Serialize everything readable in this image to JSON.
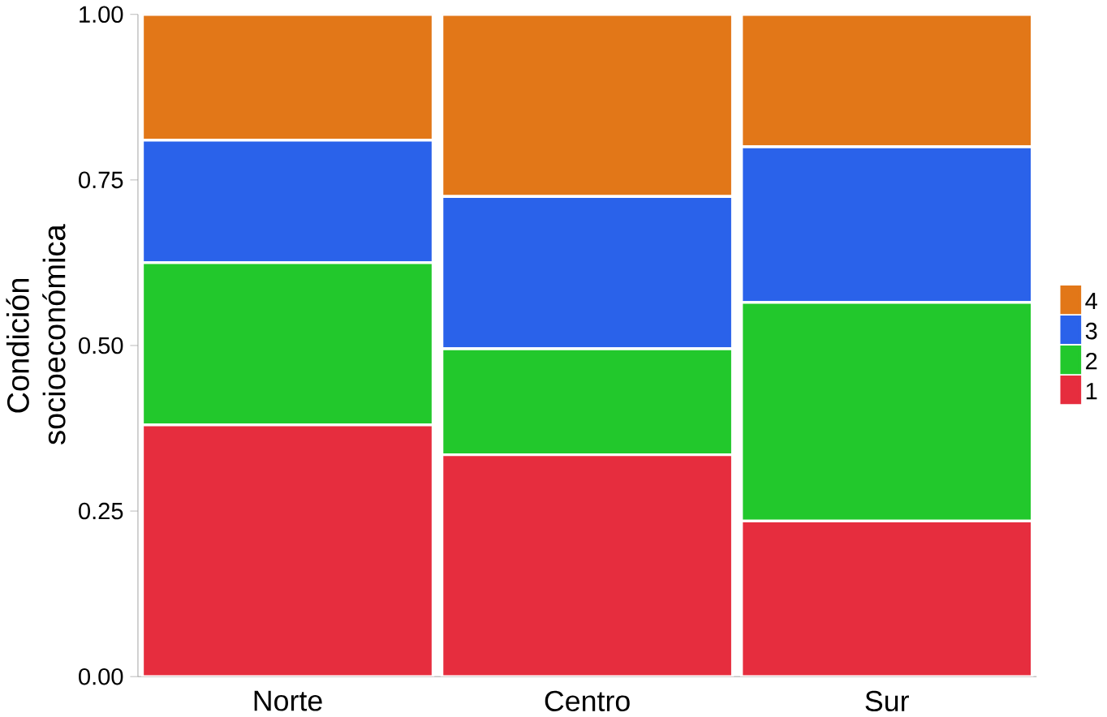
{
  "chart_data": {
    "type": "bar",
    "stacked": true,
    "ylabel": "Condición socioeconómica",
    "categories": [
      "Norte",
      "Centro",
      "Sur"
    ],
    "ylim": [
      0,
      1
    ],
    "yticks": [
      {
        "value": 0,
        "label": "0.00"
      },
      {
        "value": 0.25,
        "label": "0.25"
      },
      {
        "value": 0.5,
        "label": "0.50"
      },
      {
        "value": 0.75,
        "label": "0.75"
      },
      {
        "value": 1,
        "label": "1.00"
      }
    ],
    "legend": "right",
    "series": [
      {
        "name": "1",
        "color": "#e62d3e",
        "values": [
          0.38,
          0.335,
          0.235
        ]
      },
      {
        "name": "2",
        "color": "#22c82c",
        "values": [
          0.245,
          0.16,
          0.33
        ]
      },
      {
        "name": "3",
        "color": "#2a62ea",
        "values": [
          0.185,
          0.23,
          0.235
        ]
      },
      {
        "name": "4",
        "color": "#e27718",
        "values": [
          0.19,
          0.275,
          0.2
        ]
      }
    ]
  }
}
